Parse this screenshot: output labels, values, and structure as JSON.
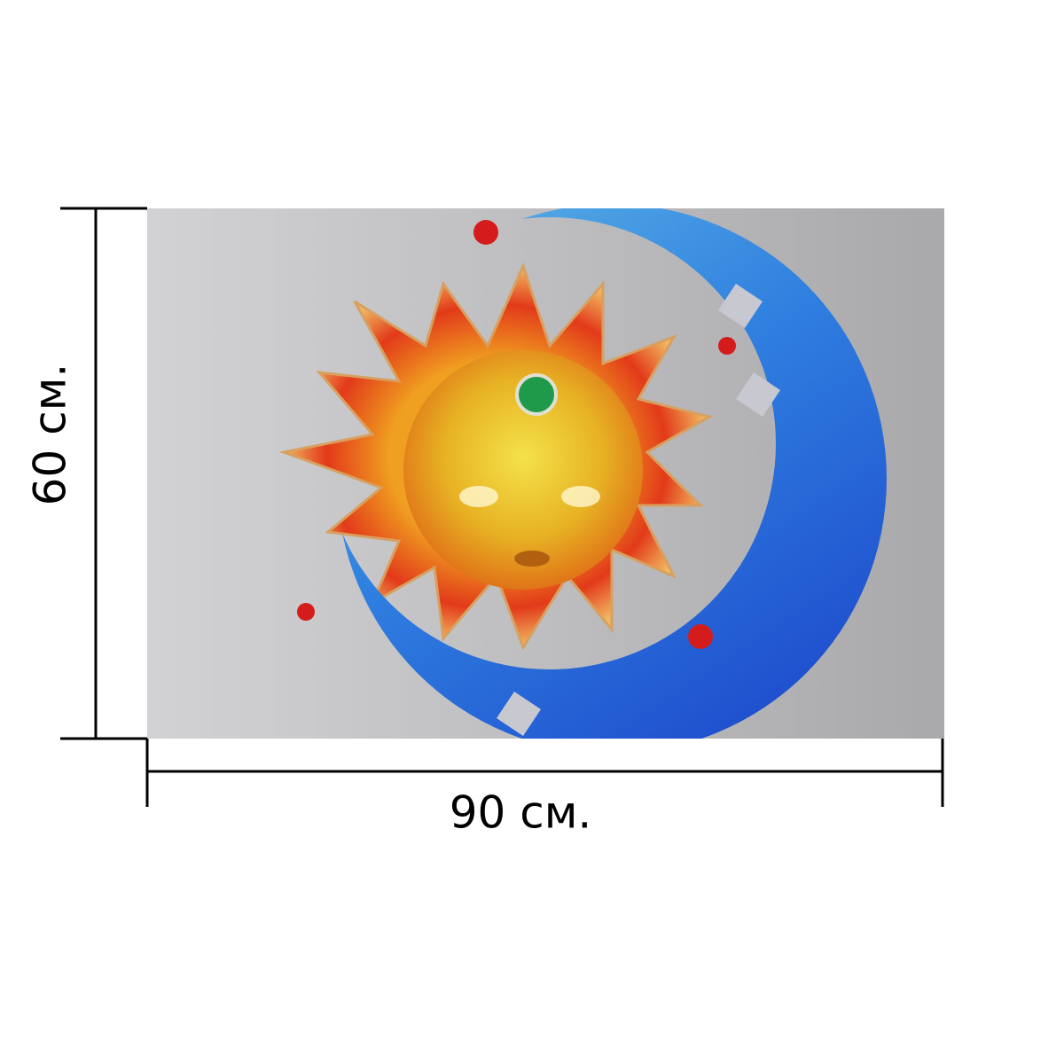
{
  "labels": {
    "height": "60 см.",
    "width": "90 см."
  }
}
